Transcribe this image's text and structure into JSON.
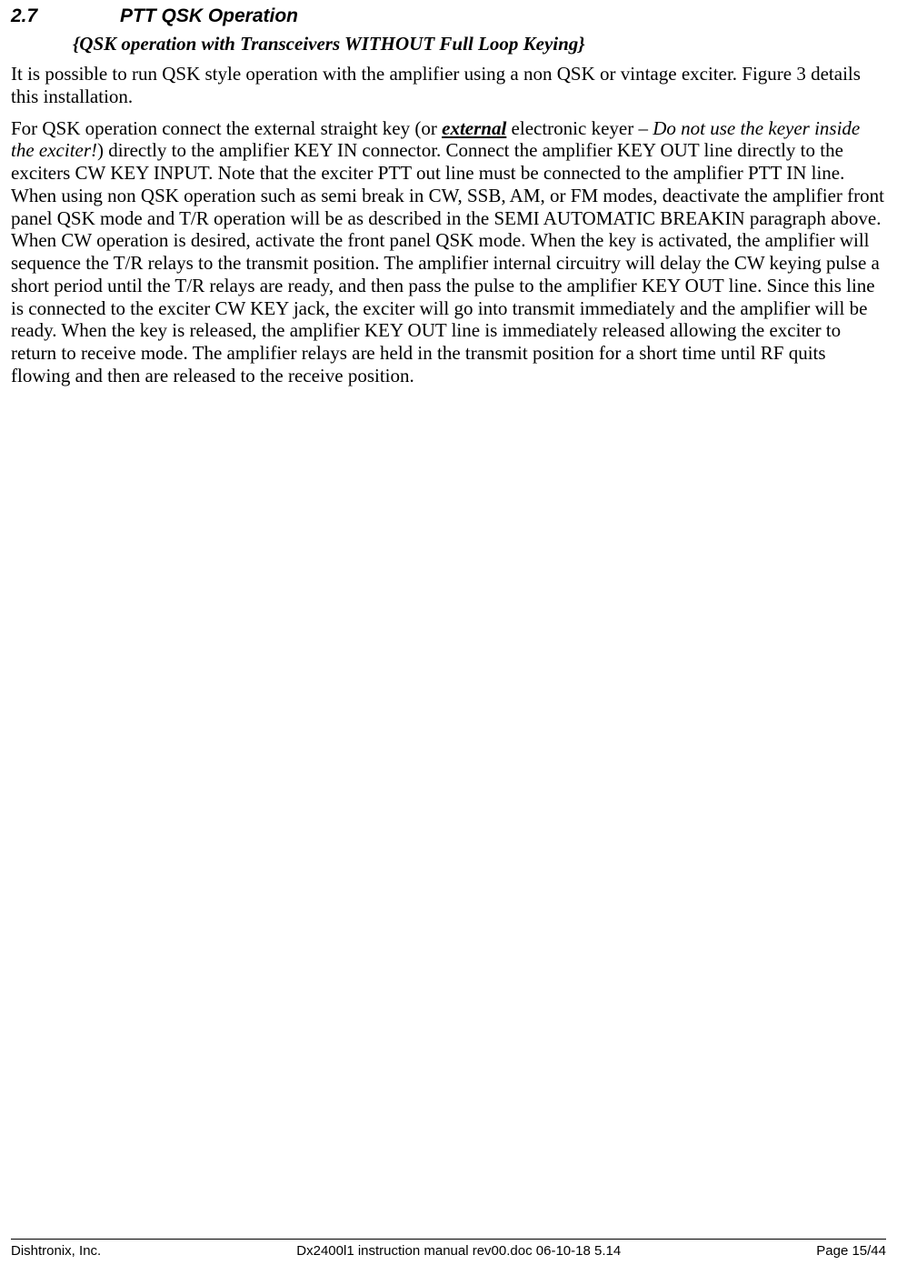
{
  "heading": {
    "number": "2.7",
    "title": "PTT QSK Operation"
  },
  "subtitle": "{QSK operation with Transceivers WITHOUT Full Loop Keying}",
  "para1": "It is possible to run QSK style operation with the amplifier using a non QSK or vintage exciter. Figure 3 details this installation.",
  "para2_pre": "For QSK operation connect the external straight key (or  ",
  "para2_external": "external",
  "para2_mid": " electronic keyer – ",
  "para2_italic": "Do not use the keyer inside the exciter!",
  "para2_post": ") directly to the amplifier KEY IN connector. Connect the amplifier KEY OUT line directly to the exciters CW KEY INPUT.  Note that the exciter PTT out line must be connected to the amplifier PTT IN line.  When using non QSK operation such as semi break in CW, SSB, AM, or FM modes, deactivate the amplifier front panel QSK mode and T/R operation will be as described in the SEMI AUTOMATIC BREAKIN paragraph above.  When CW operation is desired, activate the front panel QSK mode.  When the key is activated, the amplifier will sequence the T/R relays to the transmit position. The amplifier internal circuitry will delay the CW keying pulse a short period until the T/R relays are ready, and then pass the pulse to the amplifier KEY OUT line.  Since this line is connected to the exciter CW KEY jack, the exciter will go into transmit immediately and the amplifier will be ready.  When the key is released, the amplifier KEY OUT line is immediately released allowing the exciter to return to receive mode.  The amplifier relays are held in the transmit position for a short time until RF quits flowing and then are released to the receive position.",
  "footer": {
    "left": "Dishtronix, Inc.",
    "center": "Dx2400l1 instruction manual rev00.doc 06-10-18 5.14",
    "right": "Page 15/44"
  }
}
